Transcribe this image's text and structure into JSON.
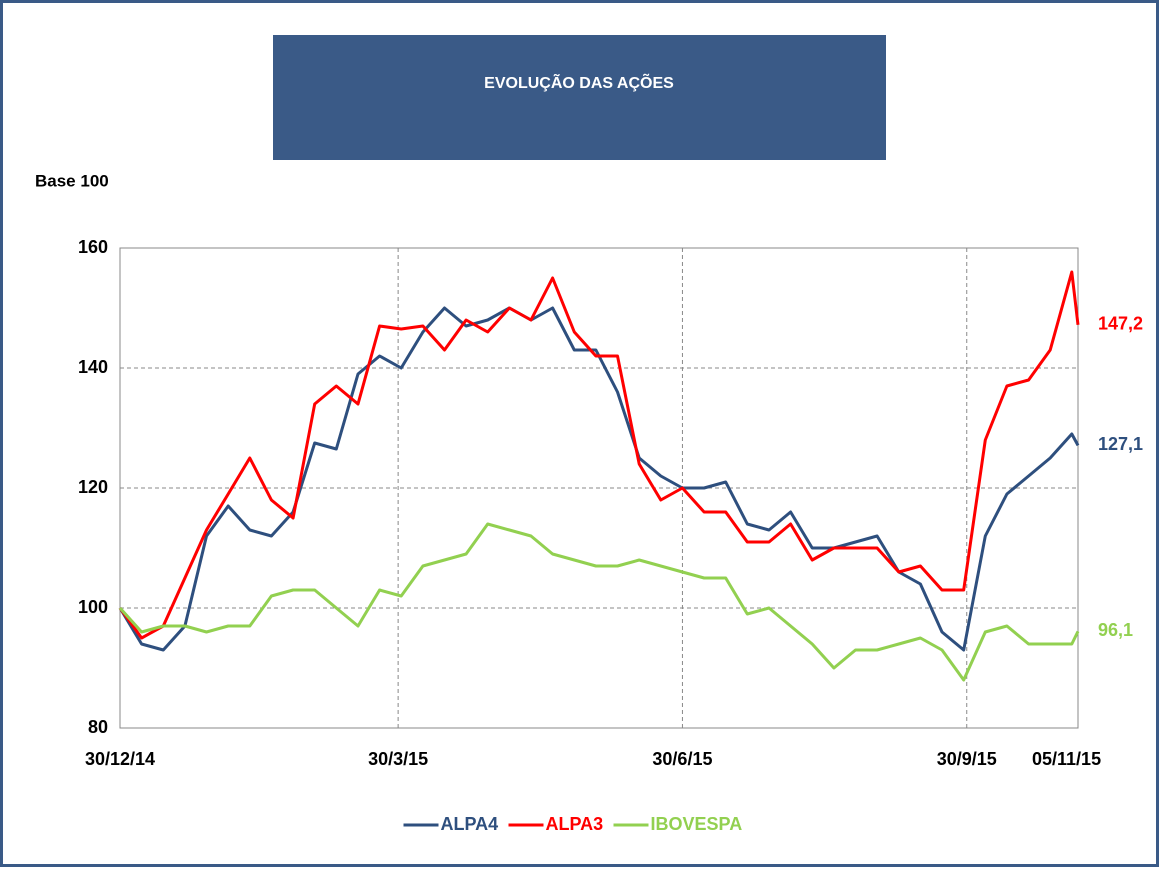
{
  "chart_data": {
    "type": "line",
    "title": "EVOLUÇÃO DAS AÇÕES",
    "y_label": "Base 100",
    "x": [
      "30/12/14",
      "06/01/15",
      "13/01/15",
      "20/01/15",
      "27/01/15",
      "03/02/15",
      "10/02/15",
      "17/02/15",
      "24/02/15",
      "03/03/15",
      "10/03/15",
      "17/03/15",
      "24/03/15",
      "31/03/15",
      "07/04/15",
      "14/04/15",
      "21/04/15",
      "28/04/15",
      "05/05/15",
      "12/05/15",
      "19/05/15",
      "26/05/15",
      "02/06/15",
      "09/06/15",
      "16/06/15",
      "23/06/15",
      "30/06/15",
      "07/07/15",
      "14/07/15",
      "21/07/15",
      "28/07/15",
      "04/08/15",
      "11/08/15",
      "18/08/15",
      "25/08/15",
      "01/09/15",
      "08/09/15",
      "15/09/15",
      "22/09/15",
      "29/09/15",
      "06/10/15",
      "13/10/15",
      "20/10/15",
      "27/10/15",
      "03/11/15",
      "05/11/15"
    ],
    "series": [
      {
        "name": "ALPA4",
        "color": "#2e4f7e",
        "values": [
          100,
          94,
          93,
          97,
          112,
          117,
          113,
          112,
          116,
          127.5,
          126.5,
          139,
          142,
          140,
          146,
          150,
          147,
          148,
          150,
          148,
          150,
          143,
          143,
          136,
          125,
          122,
          120,
          120,
          121,
          114,
          113,
          116,
          110,
          110,
          111,
          112,
          106,
          104,
          96,
          93,
          112,
          119,
          122,
          125,
          129,
          127.1
        ],
        "value_labels": [
          null,
          null,
          null,
          null,
          null,
          null,
          null,
          null,
          null,
          null,
          null,
          null,
          null,
          null,
          null,
          null,
          null,
          null,
          null,
          null,
          null,
          null,
          null,
          null,
          null,
          null,
          null,
          null,
          null,
          null,
          null,
          null,
          null,
          null,
          null,
          null,
          null,
          null,
          null,
          null,
          null,
          null,
          null,
          null,
          null,
          "127,1"
        ]
      },
      {
        "name": "ALPA3",
        "color": "#ff0000",
        "values": [
          100,
          95,
          97,
          105,
          113,
          119,
          125,
          118,
          115,
          134,
          137,
          134,
          147,
          146.5,
          147,
          143,
          148,
          146,
          150,
          148,
          155,
          146,
          142,
          142,
          124,
          118,
          120,
          116,
          116,
          111,
          111,
          114,
          108,
          110,
          110,
          110,
          106,
          107,
          103,
          103,
          128,
          137,
          138,
          143,
          156,
          147.2
        ],
        "value_labels": [
          null,
          null,
          null,
          null,
          null,
          null,
          null,
          null,
          null,
          null,
          null,
          null,
          null,
          null,
          null,
          null,
          null,
          null,
          null,
          null,
          null,
          null,
          null,
          null,
          null,
          null,
          null,
          null,
          null,
          null,
          null,
          null,
          null,
          null,
          null,
          null,
          null,
          null,
          null,
          null,
          null,
          null,
          null,
          null,
          null,
          "147,2"
        ]
      },
      {
        "name": "IBOVESPA",
        "color": "#92d050",
        "values": [
          100,
          96,
          97,
          97,
          96,
          97,
          97,
          102,
          103,
          103,
          100,
          97,
          103,
          102,
          107,
          108,
          109,
          114,
          113,
          112,
          109,
          108,
          107,
          107,
          108,
          107,
          106,
          105,
          105,
          99,
          100,
          97,
          94,
          90,
          93,
          93,
          94,
          95,
          93,
          88,
          96,
          97,
          94,
          94,
          94,
          96.1
        ],
        "value_labels": [
          null,
          null,
          null,
          null,
          null,
          null,
          null,
          null,
          null,
          null,
          null,
          null,
          null,
          null,
          null,
          null,
          null,
          null,
          null,
          null,
          null,
          null,
          null,
          null,
          null,
          null,
          null,
          null,
          null,
          null,
          null,
          null,
          null,
          null,
          null,
          null,
          null,
          null,
          null,
          null,
          null,
          null,
          null,
          null,
          null,
          "96,1"
        ]
      }
    ],
    "xlim": [
      "30/12/14",
      "05/11/15"
    ],
    "xticks": [
      "30/12/14",
      "30/3/15",
      "30/6/15",
      "30/9/15",
      "05/11/15"
    ],
    "ylim": [
      80,
      160
    ],
    "yticks": [
      80,
      100,
      120,
      140,
      160
    ],
    "grid": true,
    "legend": "bottom"
  }
}
